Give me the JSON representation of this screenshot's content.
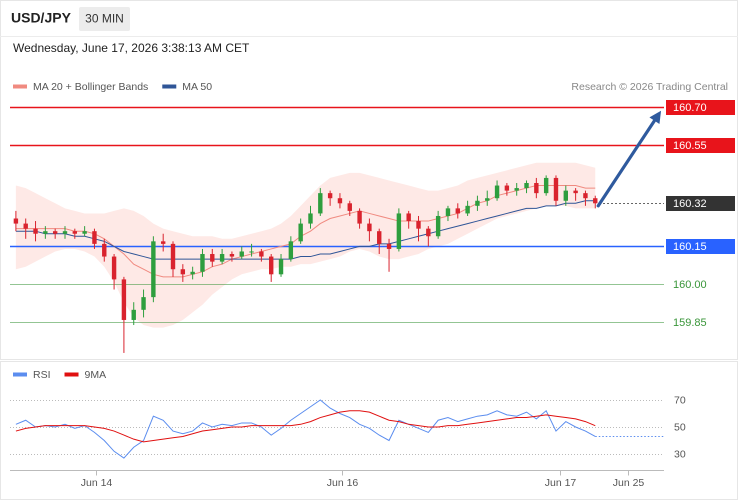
{
  "header": {
    "symbol": "USD/JPY",
    "timeframe": "30 MIN",
    "timestamp": "Wednesday, June 17, 2026 3:38:13 AM CET",
    "credit": "Research © 2026 Trading Central"
  },
  "chart_data": [
    {
      "type": "candlestick",
      "up_color": "#2e9e3e",
      "down_color": "#d9232e",
      "open": [
        160.26,
        160.24,
        160.22,
        160.2,
        160.21,
        160.2,
        160.21,
        160.2,
        160.21,
        160.16,
        160.11,
        160.02,
        159.86,
        159.9,
        159.95,
        160.17,
        160.16,
        160.06,
        160.04,
        160.05,
        160.12,
        160.09,
        160.12,
        160.11,
        160.13,
        160.13,
        160.11,
        160.04,
        160.1,
        160.17,
        160.24,
        160.28,
        160.36,
        160.34,
        160.32,
        160.29,
        160.24,
        160.21,
        160.16,
        160.14,
        160.28,
        160.25,
        160.22,
        160.19,
        160.27,
        160.3,
        160.28,
        160.31,
        160.33,
        160.34,
        160.39,
        160.37,
        160.38,
        160.4,
        160.36,
        160.42,
        160.33,
        160.37,
        160.36,
        160.34
      ],
      "high": [
        160.29,
        160.26,
        160.25,
        160.23,
        160.22,
        160.23,
        160.22,
        160.23,
        160.22,
        160.18,
        160.12,
        160.03,
        159.93,
        159.98,
        160.19,
        160.2,
        160.17,
        160.08,
        160.07,
        160.14,
        160.14,
        160.14,
        160.13,
        160.15,
        160.16,
        160.14,
        160.12,
        160.12,
        160.19,
        160.26,
        160.31,
        160.38,
        160.37,
        160.36,
        160.33,
        160.3,
        160.26,
        160.22,
        160.18,
        160.3,
        160.29,
        160.27,
        160.23,
        160.29,
        160.31,
        160.32,
        160.33,
        160.35,
        160.37,
        160.41,
        160.4,
        160.4,
        160.41,
        160.42,
        160.43,
        160.43,
        160.39,
        160.38,
        160.37,
        160.35
      ],
      "low": [
        160.21,
        160.18,
        160.17,
        160.18,
        160.18,
        160.18,
        160.18,
        160.19,
        160.14,
        160.09,
        159.98,
        159.73,
        159.84,
        159.87,
        159.93,
        160.13,
        160.03,
        160.01,
        160.02,
        160.03,
        160.07,
        160.08,
        160.09,
        160.1,
        160.11,
        160.09,
        160.01,
        160.03,
        160.09,
        160.16,
        160.22,
        160.27,
        160.31,
        160.3,
        160.27,
        160.22,
        160.17,
        160.12,
        160.05,
        160.13,
        160.22,
        160.17,
        160.15,
        160.18,
        160.25,
        160.26,
        160.27,
        160.29,
        160.31,
        160.33,
        160.35,
        160.35,
        160.36,
        160.34,
        160.35,
        160.31,
        160.31,
        160.33,
        160.31,
        160.3
      ],
      "close": [
        160.24,
        160.22,
        160.2,
        160.21,
        160.2,
        160.21,
        160.2,
        160.21,
        160.16,
        160.11,
        160.02,
        159.86,
        159.9,
        159.95,
        160.17,
        160.16,
        160.06,
        160.04,
        160.05,
        160.12,
        160.09,
        160.12,
        160.11,
        160.13,
        160.13,
        160.11,
        160.04,
        160.1,
        160.17,
        160.24,
        160.28,
        160.36,
        160.34,
        160.32,
        160.29,
        160.24,
        160.21,
        160.16,
        160.14,
        160.28,
        160.25,
        160.22,
        160.19,
        160.27,
        160.3,
        160.28,
        160.31,
        160.33,
        160.34,
        160.39,
        160.37,
        160.38,
        160.4,
        160.36,
        160.42,
        160.33,
        160.37,
        160.36,
        160.34,
        160.32
      ],
      "series": [
        {
          "name": "MA 20 + Bollinger Bands",
          "color": "#f08a80",
          "band_color": "#fde2de",
          "values": [
            160.22,
            160.22,
            160.22,
            160.22,
            160.22,
            160.22,
            160.21,
            160.21,
            160.2,
            160.18,
            160.15,
            160.12,
            160.08,
            160.06,
            160.04,
            160.03,
            160.03,
            160.03,
            160.04,
            160.05,
            160.07,
            160.08,
            160.1,
            160.11,
            160.12,
            160.13,
            160.14,
            160.15,
            160.16,
            160.19,
            160.21,
            160.24,
            160.26,
            160.27,
            160.28,
            160.29,
            160.28,
            160.27,
            160.26,
            160.25,
            160.25,
            160.25,
            160.25,
            160.26,
            160.27,
            160.28,
            160.3,
            160.32,
            160.33,
            160.35,
            160.36,
            160.37,
            160.38,
            160.39,
            160.39,
            160.39,
            160.39,
            160.39,
            160.38,
            160.38
          ],
          "upper": [
            160.39,
            160.38,
            160.36,
            160.34,
            160.32,
            160.3,
            160.29,
            160.28,
            160.28,
            160.28,
            160.29,
            160.3,
            160.29,
            160.27,
            160.24,
            160.22,
            160.21,
            160.2,
            160.19,
            160.19,
            160.19,
            160.18,
            160.18,
            160.19,
            160.2,
            160.21,
            160.22,
            160.24,
            160.27,
            160.31,
            160.35,
            160.39,
            160.42,
            160.43,
            160.44,
            160.44,
            160.43,
            160.42,
            160.41,
            160.4,
            160.39,
            160.38,
            160.37,
            160.37,
            160.38,
            160.39,
            160.41,
            160.42,
            160.43,
            160.44,
            160.45,
            160.46,
            160.47,
            160.48,
            160.48,
            160.48,
            160.48,
            160.48,
            160.47,
            160.46
          ],
          "lower": [
            160.06,
            160.07,
            160.09,
            160.11,
            160.13,
            160.14,
            160.14,
            160.13,
            160.11,
            160.07,
            160.01,
            159.93,
            159.87,
            159.84,
            159.83,
            159.83,
            159.84,
            159.86,
            159.89,
            159.92,
            159.96,
            159.99,
            160.02,
            160.04,
            160.05,
            160.06,
            160.06,
            160.07,
            160.07,
            160.08,
            160.08,
            160.09,
            160.1,
            160.11,
            160.13,
            160.14,
            160.13,
            160.11,
            160.1,
            160.1,
            160.11,
            160.12,
            160.14,
            160.15,
            160.16,
            160.18,
            160.2,
            160.22,
            160.24,
            160.26,
            160.27,
            160.28,
            160.29,
            160.3,
            160.31,
            160.31,
            160.31,
            160.3,
            160.3,
            160.3
          ]
        },
        {
          "name": "MA 50",
          "color": "#2f5597",
          "values": [
            160.21,
            160.21,
            160.21,
            160.2,
            160.2,
            160.2,
            160.19,
            160.19,
            160.18,
            160.17,
            160.15,
            160.13,
            160.12,
            160.11,
            160.1,
            160.1,
            160.1,
            160.1,
            160.1,
            160.1,
            160.1,
            160.1,
            160.1,
            160.1,
            160.1,
            160.1,
            160.1,
            160.1,
            160.1,
            160.11,
            160.11,
            160.12,
            160.12,
            160.13,
            160.14,
            160.15,
            160.15,
            160.16,
            160.16,
            160.17,
            160.18,
            160.19,
            160.2,
            160.21,
            160.22,
            160.23,
            160.24,
            160.25,
            160.26,
            160.27,
            160.28,
            160.29,
            160.3,
            160.3,
            160.31,
            160.31,
            160.32,
            160.32,
            160.33,
            160.33
          ]
        }
      ],
      "xlim": [
        -0.6,
        66
      ],
      "ylim": [
        159.71,
        160.885
      ],
      "yticks": [
        {
          "value": 160.7,
          "label": "160.70"
        },
        {
          "value": 160.55,
          "label": "160.55"
        },
        {
          "value": 160.32,
          "label": "160.32"
        },
        {
          "value": 160.15,
          "label": "160.15"
        },
        {
          "value": 160,
          "label": "160.00"
        },
        {
          "value": 159.85,
          "label": "159.85"
        }
      ],
      "level_colors": [
        "#e8141b",
        "#e8141b",
        "#333333",
        "#2962ff",
        "#3a963a",
        "#3a963a"
      ],
      "level_badges": [
        true,
        true,
        true,
        true,
        false,
        false
      ],
      "level_styles": [
        "solid",
        "solid",
        "dotted",
        "solid",
        "solid",
        "solid"
      ],
      "forecast_arrow": {
        "x": [
          59.3,
          65.7
        ],
        "y": [
          160.31,
          160.685
        ],
        "color": "#2f5a9e"
      }
    },
    {
      "type": "line",
      "series": [
        {
          "name": "RSI",
          "color": "#5b8def",
          "values": [
            52,
            55,
            50,
            51,
            50,
            52,
            49,
            51,
            46,
            40,
            32,
            27,
            35,
            40,
            58,
            55,
            47,
            45,
            47,
            53,
            50,
            52,
            51,
            53,
            53,
            50,
            44,
            49,
            55,
            60,
            65,
            70,
            64,
            60,
            57,
            52,
            49,
            44,
            40,
            55,
            52,
            49,
            46,
            55,
            57,
            54,
            56,
            58,
            59,
            62,
            59,
            58,
            61,
            56,
            62,
            47,
            54,
            50,
            47,
            43
          ]
        },
        {
          "name": "9MA",
          "color": "#e01010",
          "values": [
            47,
            49,
            50,
            51,
            51,
            51,
            51,
            51,
            50,
            49,
            47,
            44,
            41,
            39,
            40,
            41,
            42,
            43,
            45,
            47,
            48,
            49,
            50,
            50,
            51,
            51,
            51,
            51,
            51,
            52,
            54,
            57,
            59,
            61,
            62,
            62,
            61,
            58,
            55,
            54,
            52,
            51,
            50,
            50,
            51,
            51,
            52,
            53,
            54,
            55,
            56,
            57,
            57,
            58,
            59,
            58,
            57,
            56,
            54,
            51
          ]
        }
      ],
      "xlim": [
        -0.6,
        66
      ],
      "ylim": [
        20,
        80
      ],
      "yticks": [
        30,
        50,
        70
      ],
      "xticks": [
        {
          "value": 8.2,
          "label": "Jun 14"
        },
        {
          "value": 33.2,
          "label": "Jun 16"
        },
        {
          "value": 55.4,
          "label": "Jun 17"
        },
        {
          "value": 62.3,
          "label": "Jun 25"
        }
      ]
    }
  ]
}
